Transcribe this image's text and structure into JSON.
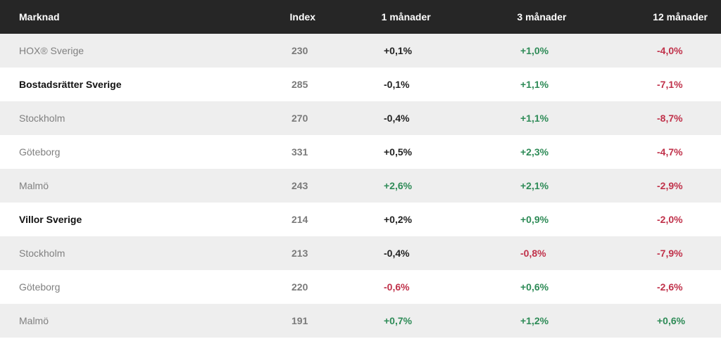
{
  "colors": {
    "header_bg": "#262626",
    "stripe": "#eeeeee",
    "positive": "#2e8b57",
    "negative": "#c0314a",
    "neutral": "#222222"
  },
  "table": {
    "headers": {
      "market": "Marknad",
      "index": "Index",
      "m1": "1 månader",
      "m3": "3 månader",
      "m12": "12 månader"
    },
    "rows": [
      {
        "name": "HOX® Sverige",
        "emphasis": false,
        "index": "230",
        "m1": "+0,1%",
        "m1_tone": "neutral",
        "m3": "+1,0%",
        "m3_tone": "pos",
        "m12": "-4,0%",
        "m12_tone": "neg"
      },
      {
        "name": "Bostadsrätter Sverige",
        "emphasis": true,
        "index": "285",
        "m1": "-0,1%",
        "m1_tone": "neutral",
        "m3": "+1,1%",
        "m3_tone": "pos",
        "m12": "-7,1%",
        "m12_tone": "neg"
      },
      {
        "name": "Stockholm",
        "emphasis": false,
        "index": "270",
        "m1": "-0,4%",
        "m1_tone": "neutral",
        "m3": "+1,1%",
        "m3_tone": "pos",
        "m12": "-8,7%",
        "m12_tone": "neg"
      },
      {
        "name": "Göteborg",
        "emphasis": false,
        "index": "331",
        "m1": "+0,5%",
        "m1_tone": "neutral",
        "m3": "+2,3%",
        "m3_tone": "pos",
        "m12": "-4,7%",
        "m12_tone": "neg"
      },
      {
        "name": "Malmö",
        "emphasis": false,
        "index": "243",
        "m1": "+2,6%",
        "m1_tone": "pos",
        "m3": "+2,1%",
        "m3_tone": "pos",
        "m12": "-2,9%",
        "m12_tone": "neg"
      },
      {
        "name": "Villor Sverige",
        "emphasis": true,
        "index": "214",
        "m1": "+0,2%",
        "m1_tone": "neutral",
        "m3": "+0,9%",
        "m3_tone": "pos",
        "m12": "-2,0%",
        "m12_tone": "neg"
      },
      {
        "name": "Stockholm",
        "emphasis": false,
        "index": "213",
        "m1": "-0,4%",
        "m1_tone": "neutral",
        "m3": "-0,8%",
        "m3_tone": "neg",
        "m12": "-7,9%",
        "m12_tone": "neg"
      },
      {
        "name": "Göteborg",
        "emphasis": false,
        "index": "220",
        "m1": "-0,6%",
        "m1_tone": "neg",
        "m3": "+0,6%",
        "m3_tone": "pos",
        "m12": "-2,6%",
        "m12_tone": "neg"
      },
      {
        "name": "Malmö",
        "emphasis": false,
        "index": "191",
        "m1": "+0,7%",
        "m1_tone": "pos",
        "m3": "+1,2%",
        "m3_tone": "pos",
        "m12": "+0,6%",
        "m12_tone": "pos"
      }
    ]
  }
}
